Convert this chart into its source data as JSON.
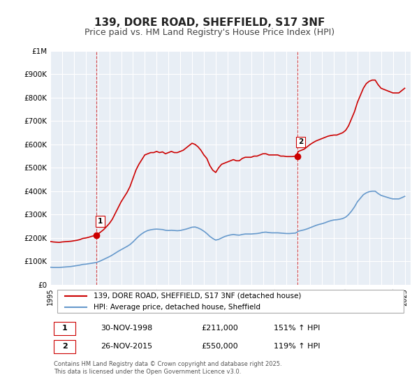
{
  "title": "139, DORE ROAD, SHEFFIELD, S17 3NF",
  "subtitle": "Price paid vs. HM Land Registry's House Price Index (HPI)",
  "title_fontsize": 11,
  "subtitle_fontsize": 9,
  "background_color": "#ffffff",
  "plot_bg_color": "#e8eef5",
  "grid_color": "#ffffff",
  "ylim": [
    0,
    1000000
  ],
  "yticks": [
    0,
    100000,
    200000,
    300000,
    400000,
    500000,
    600000,
    700000,
    800000,
    900000,
    1000000
  ],
  "ytick_labels": [
    "£0",
    "£100K",
    "£200K",
    "£300K",
    "£400K",
    "£500K",
    "£600K",
    "£700K",
    "£800K",
    "£900K",
    "£1M"
  ],
  "xlim_start": 1995.0,
  "xlim_end": 2025.5,
  "xticks": [
    1995,
    1996,
    1997,
    1998,
    1999,
    2000,
    2001,
    2002,
    2003,
    2004,
    2005,
    2006,
    2007,
    2008,
    2009,
    2010,
    2011,
    2012,
    2013,
    2014,
    2015,
    2016,
    2017,
    2018,
    2019,
    2020,
    2021,
    2022,
    2023,
    2024,
    2025
  ],
  "sale1_x": 1998.92,
  "sale1_y": 211000,
  "sale1_label": "1",
  "sale1_vline_x": 1998.92,
  "sale2_x": 2015.9,
  "sale2_y": 550000,
  "sale2_label": "2",
  "sale2_vline_x": 2015.9,
  "property_line_color": "#cc0000",
  "hpi_line_color": "#6699cc",
  "legend_label_property": "139, DORE ROAD, SHEFFIELD, S17 3NF (detached house)",
  "legend_label_hpi": "HPI: Average price, detached house, Sheffield",
  "table_rows": [
    {
      "num": "1",
      "date": "30-NOV-1998",
      "price": "£211,000",
      "hpi": "151% ↑ HPI"
    },
    {
      "num": "2",
      "date": "26-NOV-2015",
      "price": "£550,000",
      "hpi": "119% ↑ HPI"
    }
  ],
  "footer": "Contains HM Land Registry data © Crown copyright and database right 2025.\nThis data is licensed under the Open Government Licence v3.0.",
  "property_hpi_data": {
    "years": [
      1995.0,
      1995.25,
      1995.5,
      1995.75,
      1996.0,
      1996.25,
      1996.5,
      1996.75,
      1997.0,
      1997.25,
      1997.5,
      1997.75,
      1998.0,
      1998.25,
      1998.5,
      1998.75,
      1998.92,
      1999.0,
      1999.25,
      1999.5,
      1999.75,
      2000.0,
      2000.25,
      2000.5,
      2000.75,
      2001.0,
      2001.25,
      2001.5,
      2001.75,
      2002.0,
      2002.25,
      2002.5,
      2002.75,
      2003.0,
      2003.25,
      2003.5,
      2003.75,
      2004.0,
      2004.25,
      2004.5,
      2004.75,
      2005.0,
      2005.25,
      2005.5,
      2005.75,
      2006.0,
      2006.25,
      2006.5,
      2006.75,
      2007.0,
      2007.25,
      2007.5,
      2007.75,
      2008.0,
      2008.25,
      2008.5,
      2008.75,
      2009.0,
      2009.25,
      2009.5,
      2009.75,
      2010.0,
      2010.25,
      2010.5,
      2010.75,
      2011.0,
      2011.25,
      2011.5,
      2011.75,
      2012.0,
      2012.25,
      2012.5,
      2012.75,
      2013.0,
      2013.25,
      2013.5,
      2013.75,
      2014.0,
      2014.25,
      2014.5,
      2014.75,
      2015.0,
      2015.25,
      2015.5,
      2015.75,
      2015.9,
      2016.0,
      2016.25,
      2016.5,
      2016.75,
      2017.0,
      2017.25,
      2017.5,
      2017.75,
      2018.0,
      2018.25,
      2018.5,
      2018.75,
      2019.0,
      2019.25,
      2019.5,
      2019.75,
      2020.0,
      2020.25,
      2020.5,
      2020.75,
      2021.0,
      2021.25,
      2021.5,
      2021.75,
      2022.0,
      2022.25,
      2022.5,
      2022.75,
      2023.0,
      2023.25,
      2023.5,
      2023.75,
      2024.0,
      2024.25,
      2024.5,
      2024.75,
      2025.0
    ],
    "property_values": [
      185000,
      183000,
      182000,
      181000,
      183000,
      184000,
      185000,
      186000,
      188000,
      190000,
      193000,
      198000,
      200000,
      203000,
      207000,
      210000,
      211000,
      215000,
      225000,
      235000,
      248000,
      262000,
      280000,
      305000,
      330000,
      355000,
      375000,
      395000,
      420000,
      455000,
      490000,
      515000,
      535000,
      555000,
      560000,
      565000,
      565000,
      570000,
      565000,
      568000,
      560000,
      565000,
      570000,
      565000,
      565000,
      570000,
      575000,
      585000,
      595000,
      605000,
      600000,
      590000,
      575000,
      555000,
      540000,
      510000,
      490000,
      480000,
      500000,
      515000,
      520000,
      525000,
      530000,
      535000,
      530000,
      530000,
      540000,
      545000,
      545000,
      545000,
      550000,
      550000,
      555000,
      560000,
      560000,
      555000,
      555000,
      555000,
      555000,
      550000,
      550000,
      548000,
      548000,
      548000,
      550000,
      560000,
      570000,
      575000,
      580000,
      590000,
      600000,
      608000,
      615000,
      620000,
      625000,
      630000,
      635000,
      638000,
      640000,
      640000,
      645000,
      650000,
      660000,
      680000,
      710000,
      740000,
      780000,
      810000,
      840000,
      860000,
      870000,
      875000,
      875000,
      855000,
      840000,
      835000,
      830000,
      825000,
      820000,
      820000,
      820000,
      830000,
      840000
    ],
    "hpi_values": [
      75000,
      74000,
      74000,
      74000,
      75000,
      76000,
      77000,
      78000,
      80000,
      82000,
      84000,
      87000,
      88000,
      90000,
      92000,
      94000,
      95000,
      97000,
      102000,
      108000,
      114000,
      120000,
      127000,
      135000,
      143000,
      150000,
      157000,
      164000,
      172000,
      183000,
      196000,
      208000,
      218000,
      226000,
      232000,
      235000,
      237000,
      238000,
      237000,
      236000,
      233000,
      232000,
      233000,
      232000,
      231000,
      232000,
      235000,
      238000,
      242000,
      246000,
      247000,
      243000,
      237000,
      229000,
      219000,
      207000,
      198000,
      191000,
      194000,
      200000,
      206000,
      210000,
      213000,
      215000,
      213000,
      212000,
      215000,
      217000,
      217000,
      217000,
      218000,
      219000,
      221000,
      224000,
      225000,
      223000,
      222000,
      222000,
      222000,
      221000,
      220000,
      219000,
      219000,
      220000,
      221000,
      225000,
      229000,
      232000,
      235000,
      239000,
      244000,
      249000,
      254000,
      258000,
      261000,
      265000,
      270000,
      274000,
      277000,
      278000,
      280000,
      283000,
      289000,
      300000,
      315000,
      333000,
      355000,
      370000,
      385000,
      393000,
      398000,
      400000,
      400000,
      390000,
      382000,
      378000,
      374000,
      370000,
      367000,
      367000,
      367000,
      372000,
      378000
    ]
  }
}
